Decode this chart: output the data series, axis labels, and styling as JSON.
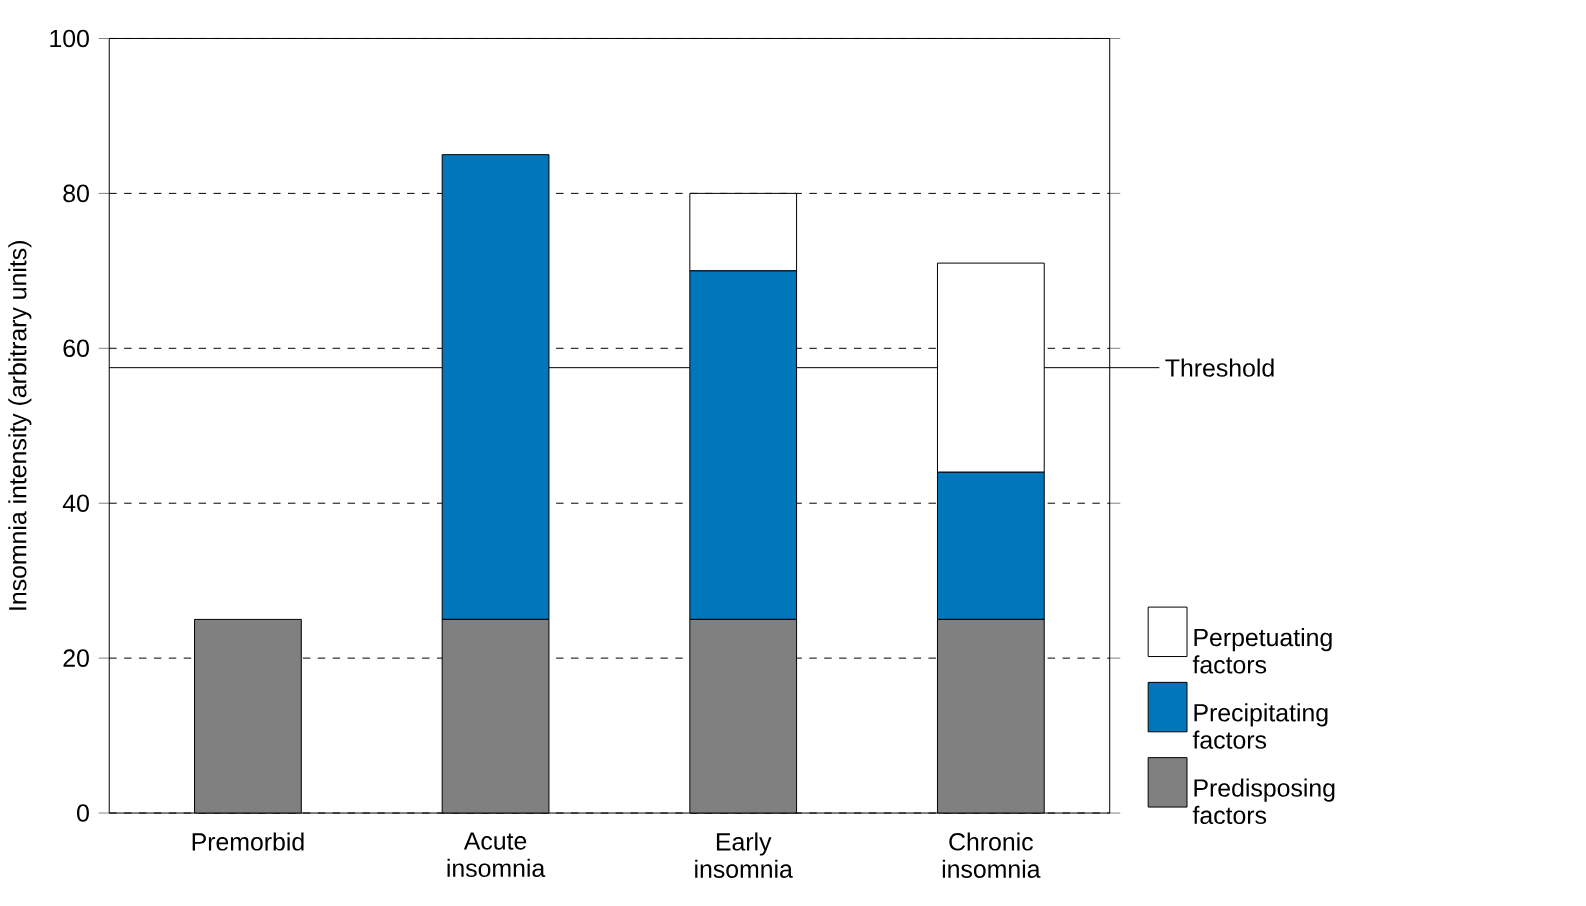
{
  "chart_data": {
    "type": "bar",
    "stacked": true,
    "ylabel": "Insomnia intensity (arbitrary units)",
    "categories": [
      "Premorbid",
      "Acute insomnia",
      "Early insomnia",
      "Chronic insomnia"
    ],
    "series": [
      {
        "name": "Predisposing factors",
        "color": "#808080",
        "values": [
          25,
          25,
          25,
          25
        ]
      },
      {
        "name": "Precipitating factors",
        "color": "#0077bb",
        "values": [
          null,
          60,
          45,
          19
        ]
      },
      {
        "name": "Perpetuating factors",
        "color": "#ffffff",
        "values": [
          null,
          null,
          10,
          27
        ]
      }
    ],
    "ylim": [
      0,
      100
    ],
    "yticks": [
      0,
      20,
      40,
      60,
      80,
      100
    ],
    "grid": "y",
    "legend": "bottom right",
    "ref_lines": [
      {
        "axis": "y",
        "value": 57.5,
        "label": "Threshold",
        "color": "#000000",
        "line_style": "solid"
      }
    ]
  }
}
